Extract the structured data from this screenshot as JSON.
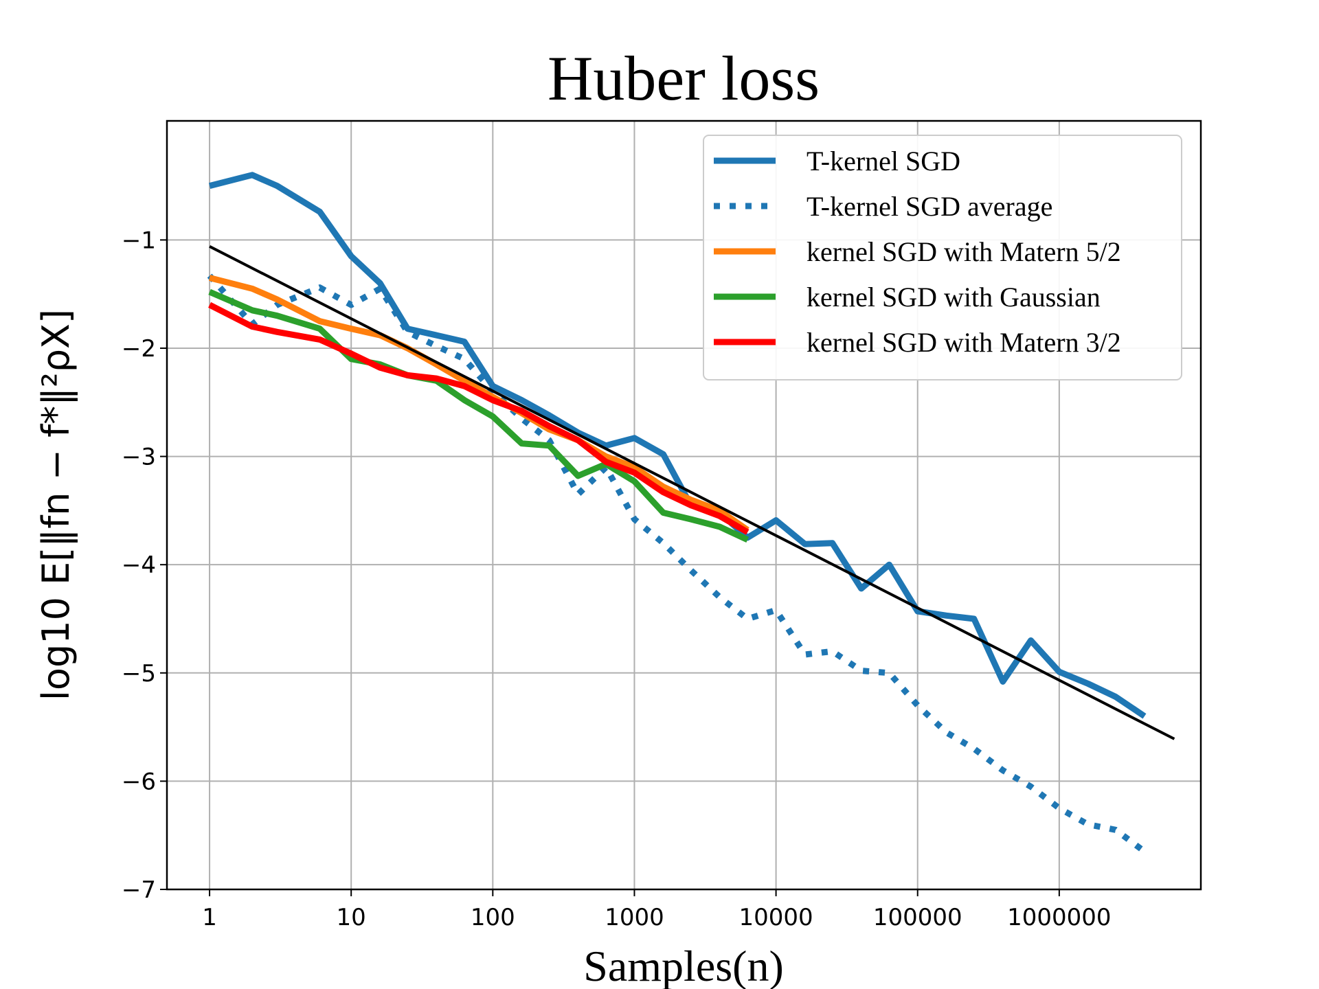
{
  "chart_data": {
    "type": "line",
    "title": "Huber loss",
    "xlabel": "Samples(n)",
    "ylabel": "log10 E[‖fn − f*‖²ρX]",
    "x_scale": "log10",
    "xlim": [
      0.5,
      10000000
    ],
    "ylim": [
      -7,
      0.1
    ],
    "x_ticks": [
      1,
      10,
      100,
      1000,
      10000,
      100000,
      1000000
    ],
    "x_tick_labels": [
      "1",
      "10",
      "100",
      "1000",
      "10000",
      "100000",
      "1000000"
    ],
    "y_ticks": [
      -1,
      -2,
      -3,
      -4,
      -5,
      -6,
      -7
    ],
    "y_tick_labels": [
      "−1",
      "−2",
      "−3",
      "−4",
      "−5",
      "−6",
      "−7"
    ],
    "grid": true,
    "legend_position": "top-right",
    "series": [
      {
        "name": "T-kernel SGD",
        "style": "solid",
        "color": "#1f77b4",
        "x": [
          1,
          2,
          3,
          6,
          10,
          16,
          25,
          40,
          63,
          100,
          160,
          250,
          400,
          630,
          1000,
          1600,
          2500,
          4000,
          6300,
          10000,
          16000,
          25000,
          40000,
          63000,
          100000,
          160000,
          250000,
          400000,
          630000,
          1000000,
          1600000,
          2500000,
          4000000
        ],
        "y": [
          -0.5,
          -0.4,
          -0.5,
          -0.74,
          -1.15,
          -1.4,
          -1.82,
          -1.88,
          -1.94,
          -2.35,
          -2.48,
          -2.62,
          -2.78,
          -2.9,
          -2.83,
          -2.98,
          -3.45,
          -3.52,
          -3.75,
          -3.59,
          -3.81,
          -3.8,
          -4.22,
          -4.0,
          -4.43,
          -4.47,
          -4.5,
          -5.08,
          -4.7,
          -4.99,
          -5.1,
          -5.22,
          -5.4
        ]
      },
      {
        "name": "T-kernel SGD average",
        "style": "dotted",
        "color": "#1f77b4",
        "x": [
          1,
          2,
          3,
          6,
          10,
          16,
          25,
          40,
          63,
          100,
          160,
          250,
          400,
          630,
          1000,
          1600,
          2500,
          4000,
          6300,
          10000,
          16000,
          25000,
          40000,
          63000,
          100000,
          160000,
          250000,
          400000,
          630000,
          1000000,
          1600000,
          2500000,
          4000000
        ],
        "y": [
          -1.33,
          -1.78,
          -1.6,
          -1.44,
          -1.6,
          -1.45,
          -1.85,
          -1.98,
          -2.1,
          -2.4,
          -2.65,
          -2.85,
          -3.35,
          -3.1,
          -3.58,
          -3.8,
          -4.05,
          -4.3,
          -4.5,
          -4.42,
          -4.83,
          -4.8,
          -4.98,
          -5.0,
          -5.3,
          -5.55,
          -5.7,
          -5.9,
          -6.05,
          -6.25,
          -6.4,
          -6.45,
          -6.65
        ]
      },
      {
        "name": "kernel SGD with Matern 5/2",
        "style": "solid",
        "color": "#ff7f0e",
        "x": [
          1,
          2,
          3,
          6,
          10,
          16,
          25,
          40,
          63,
          100,
          160,
          250,
          400,
          630,
          1000,
          1600,
          2500,
          4000,
          6300
        ],
        "y": [
          -1.35,
          -1.45,
          -1.55,
          -1.75,
          -1.82,
          -1.88,
          -2.0,
          -2.15,
          -2.3,
          -2.45,
          -2.6,
          -2.75,
          -2.85,
          -3.0,
          -3.1,
          -3.28,
          -3.4,
          -3.5,
          -3.68
        ]
      },
      {
        "name": "kernel SGD with Gaussian",
        "style": "solid",
        "color": "#2ca02c",
        "x": [
          1,
          2,
          3,
          6,
          10,
          16,
          25,
          40,
          63,
          100,
          160,
          250,
          400,
          630,
          1000,
          1600,
          2500,
          4000,
          6300
        ],
        "y": [
          -1.48,
          -1.65,
          -1.7,
          -1.82,
          -2.1,
          -2.15,
          -2.25,
          -2.3,
          -2.48,
          -2.63,
          -2.88,
          -2.9,
          -3.18,
          -3.07,
          -3.23,
          -3.52,
          -3.58,
          -3.65,
          -3.77
        ]
      },
      {
        "name": "kernel SGD with Matern 3/2",
        "style": "solid",
        "color": "#ff0000",
        "x": [
          1,
          2,
          3,
          6,
          10,
          16,
          25,
          40,
          63,
          100,
          160,
          250,
          400,
          630,
          1000,
          1600,
          2500,
          4000,
          6300
        ],
        "y": [
          -1.6,
          -1.8,
          -1.85,
          -1.92,
          -2.05,
          -2.18,
          -2.25,
          -2.28,
          -2.35,
          -2.48,
          -2.58,
          -2.72,
          -2.85,
          -3.05,
          -3.15,
          -3.33,
          -3.45,
          -3.55,
          -3.7
        ]
      },
      {
        "name": "",
        "style": "solid",
        "color": "#000000",
        "x": [
          1,
          6500000
        ],
        "y": [
          -1.06,
          -5.61
        ]
      }
    ]
  }
}
